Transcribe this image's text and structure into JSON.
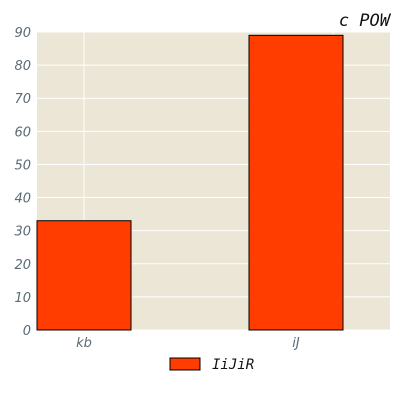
{
  "chart_data": {
    "type": "bar",
    "title": "c POW",
    "xlabel": "",
    "ylabel": "",
    "categories": [
      "kb",
      "iJ"
    ],
    "series": [
      {
        "name": "IiJiR",
        "values": [
          33,
          89
        ]
      }
    ],
    "ylim": [
      0,
      90
    ],
    "yticks": [
      0,
      10,
      20,
      30,
      40,
      50,
      60,
      70,
      80,
      90
    ],
    "grid": true,
    "legend_position": "bottom-center",
    "colors": {
      "bar": "#ff3d00",
      "plot_background": "#ece6d6",
      "grid": "#ffffff",
      "tick_text": "#5b6b74"
    }
  }
}
